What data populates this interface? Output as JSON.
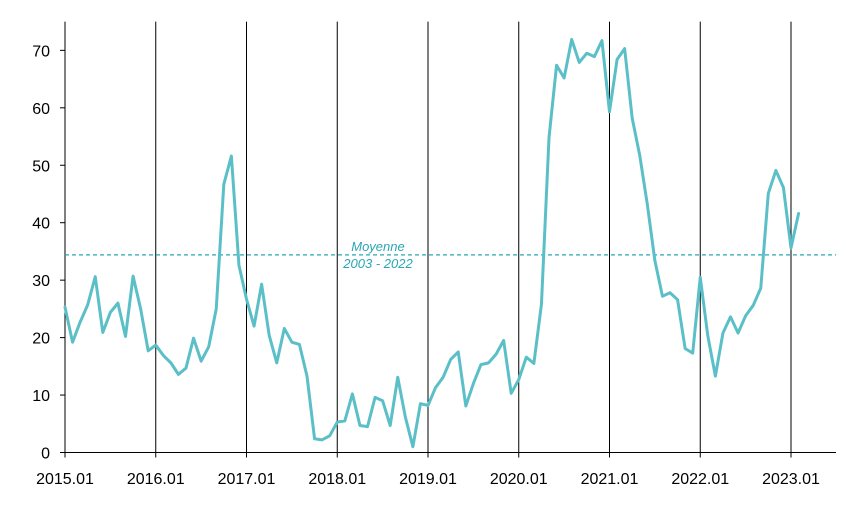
{
  "chart_data": {
    "type": "line",
    "title": "",
    "xlabel": "",
    "ylabel": "",
    "x_tick_labels": [
      "2015.01",
      "2016.01",
      "2017.01",
      "2018.01",
      "2019.01",
      "2020.01",
      "2021.01",
      "2022.01",
      "2023.01"
    ],
    "y_ticks": [
      0,
      10,
      20,
      30,
      40,
      50,
      60,
      70
    ],
    "ylim": [
      0,
      75
    ],
    "xlim": [
      "2015.01",
      "2023.04"
    ],
    "grid": "vertical lines at each January",
    "series": [
      {
        "color": "#5bbfc8",
        "points": [
          [
            "2015.01",
            25.3
          ],
          [
            "2015.02",
            19.2
          ],
          [
            "2015.03",
            22.7
          ],
          [
            "2015.04",
            25.7
          ],
          [
            "2015.05",
            30.6
          ],
          [
            "2015.06",
            20.9
          ],
          [
            "2015.07",
            24.4
          ],
          [
            "2015.08",
            26.0
          ],
          [
            "2015.09",
            20.2
          ],
          [
            "2015.10",
            30.7
          ],
          [
            "2015.11",
            25.0
          ],
          [
            "2015.12",
            17.7
          ],
          [
            "2016.01",
            18.7
          ],
          [
            "2016.02",
            16.9
          ],
          [
            "2016.03",
            15.6
          ],
          [
            "2016.04",
            13.6
          ],
          [
            "2016.05",
            14.7
          ],
          [
            "2016.06",
            19.9
          ],
          [
            "2016.07",
            15.9
          ],
          [
            "2016.08",
            18.4
          ],
          [
            "2016.09",
            25.0
          ],
          [
            "2016.10",
            46.7
          ],
          [
            "2016.11",
            51.6
          ],
          [
            "2016.12",
            32.6
          ],
          [
            "2017.01",
            26.7
          ],
          [
            "2017.02",
            22.0
          ],
          [
            "2017.03",
            29.3
          ],
          [
            "2017.04",
            20.4
          ],
          [
            "2017.05",
            15.6
          ],
          [
            "2017.06",
            21.6
          ],
          [
            "2017.07",
            19.2
          ],
          [
            "2017.08",
            18.8
          ],
          [
            "2017.09",
            13.3
          ],
          [
            "2017.10",
            2.4
          ],
          [
            "2017.11",
            2.2
          ],
          [
            "2017.12",
            2.9
          ],
          [
            "2018.01",
            5.3
          ],
          [
            "2018.02",
            5.5
          ],
          [
            "2018.03",
            10.2
          ],
          [
            "2018.04",
            4.7
          ],
          [
            "2018.05",
            4.5
          ],
          [
            "2018.06",
            9.6
          ],
          [
            "2018.07",
            9.0
          ],
          [
            "2018.08",
            4.7
          ],
          [
            "2018.09",
            13.1
          ],
          [
            "2018.10",
            6.2
          ],
          [
            "2018.11",
            1.0
          ],
          [
            "2018.12",
            8.5
          ],
          [
            "2019.01",
            8.2
          ],
          [
            "2019.02",
            11.3
          ],
          [
            "2019.03",
            13.1
          ],
          [
            "2019.04",
            16.2
          ],
          [
            "2019.05",
            17.5
          ],
          [
            "2019.06",
            8.1
          ],
          [
            "2019.07",
            12.0
          ],
          [
            "2019.08",
            15.3
          ],
          [
            "2019.09",
            15.6
          ],
          [
            "2019.10",
            17.1
          ],
          [
            "2019.11",
            19.5
          ],
          [
            "2019.12",
            10.3
          ],
          [
            "2020.01",
            12.7
          ],
          [
            "2020.02",
            16.6
          ],
          [
            "2020.03",
            15.5
          ],
          [
            "2020.04",
            25.8
          ],
          [
            "2020.05",
            54.8
          ],
          [
            "2020.06",
            67.4
          ],
          [
            "2020.07",
            65.2
          ],
          [
            "2020.08",
            71.9
          ],
          [
            "2020.09",
            67.9
          ],
          [
            "2020.10",
            69.5
          ],
          [
            "2020.11",
            68.9
          ],
          [
            "2020.12",
            71.7
          ],
          [
            "2021.01",
            59.3
          ],
          [
            "2021.02",
            68.4
          ],
          [
            "2021.03",
            70.3
          ],
          [
            "2021.04",
            58.2
          ],
          [
            "2021.05",
            51.7
          ],
          [
            "2021.06",
            43.2
          ],
          [
            "2021.07",
            33.4
          ],
          [
            "2021.08",
            27.2
          ],
          [
            "2021.09",
            27.8
          ],
          [
            "2021.10",
            26.6
          ],
          [
            "2021.11",
            18.1
          ],
          [
            "2021.12",
            17.3
          ],
          [
            "2022.01",
            30.5
          ],
          [
            "2022.02",
            20.3
          ],
          [
            "2022.03",
            13.3
          ],
          [
            "2022.04",
            20.8
          ],
          [
            "2022.05",
            23.6
          ],
          [
            "2022.06",
            20.8
          ],
          [
            "2022.07",
            23.8
          ],
          [
            "2022.08",
            25.6
          ],
          [
            "2022.09",
            28.6
          ],
          [
            "2022.10",
            45.1
          ],
          [
            "2022.11",
            49.1
          ],
          [
            "2022.12",
            46.1
          ],
          [
            "2023.01",
            35.6
          ],
          [
            "2023.02",
            41.6
          ]
        ]
      }
    ],
    "reference_line": {
      "value": 34.4,
      "label_line1": "Moyenne",
      "label_line2": "2003 - 2022",
      "color": "#2aa6b5",
      "style": "dashed"
    }
  }
}
